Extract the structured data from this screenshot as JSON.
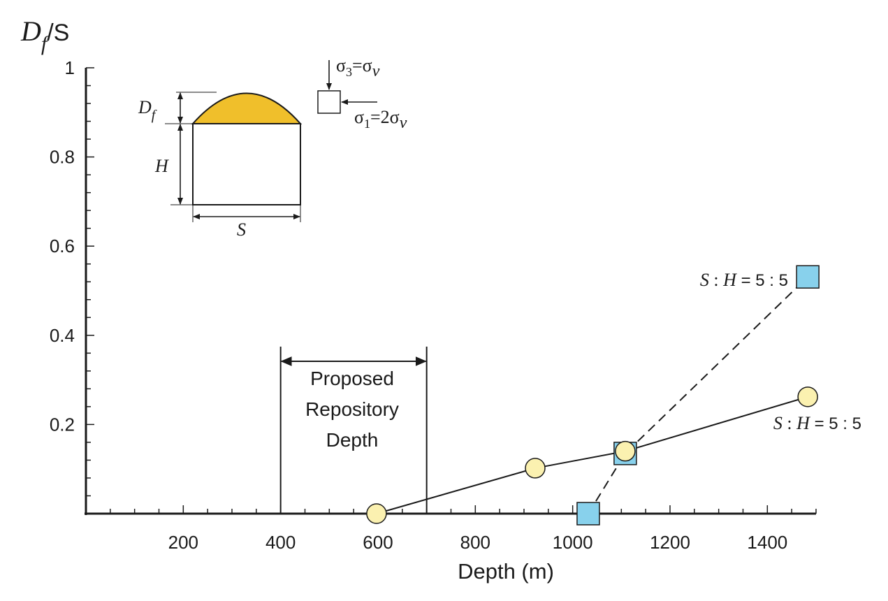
{
  "chart_data": {
    "type": "line",
    "ylabel_symbol": "D",
    "ylabel_subscript": "f",
    "ylabel_rest": "/S",
    "xlabel": "Depth (m)",
    "xlim": [
      0,
      1500
    ],
    "ylim": [
      0,
      1
    ],
    "x_ticks": [
      200,
      400,
      600,
      800,
      1000,
      1200,
      1400
    ],
    "y_ticks": [
      0.2,
      0.4,
      0.6,
      0.8,
      1
    ],
    "y_tick_labels": [
      "0.2",
      "0.4",
      "0.6",
      "0.8",
      "1"
    ],
    "series": [
      {
        "style": "solid",
        "marker": "circle",
        "marker_color": "#fbf1b0",
        "points": [
          [
            597,
            0.0
          ],
          [
            923,
            0.102
          ],
          [
            1108,
            0.14
          ],
          [
            1483,
            0.262
          ]
        ]
      },
      {
        "style": "dashed",
        "marker": "square",
        "marker_color": "#88d1ec",
        "points": [
          [
            1032,
            0.0
          ],
          [
            1108,
            0.135
          ],
          [
            1483,
            0.531
          ]
        ]
      }
    ],
    "annotations": {
      "label_upper": {
        "italic_s": "S",
        "colon": " : ",
        "italic_h": "H",
        "rest": " = 5 : 5"
      },
      "label_lower": {
        "italic_s": "S",
        "colon": " : ",
        "italic_h": "H",
        "rest": " = 5 : 5"
      },
      "repository": {
        "lines": [
          "Proposed",
          "Repository",
          "Depth"
        ],
        "x_range": [
          400,
          700
        ]
      }
    },
    "inset": {
      "df_symbol": "D",
      "df_sub": "f",
      "h_label": "H",
      "s_label": "S",
      "cap_color": "#f0bf2b",
      "sigma3_label": "σ",
      "sigma3_sub": "3",
      "sigma3_rest": "=σ",
      "sigma3_v": "v",
      "sigma1_label": "σ",
      "sigma1_sub": "1",
      "sigma1_rest": "=2σ",
      "sigma1_v": "v"
    }
  }
}
